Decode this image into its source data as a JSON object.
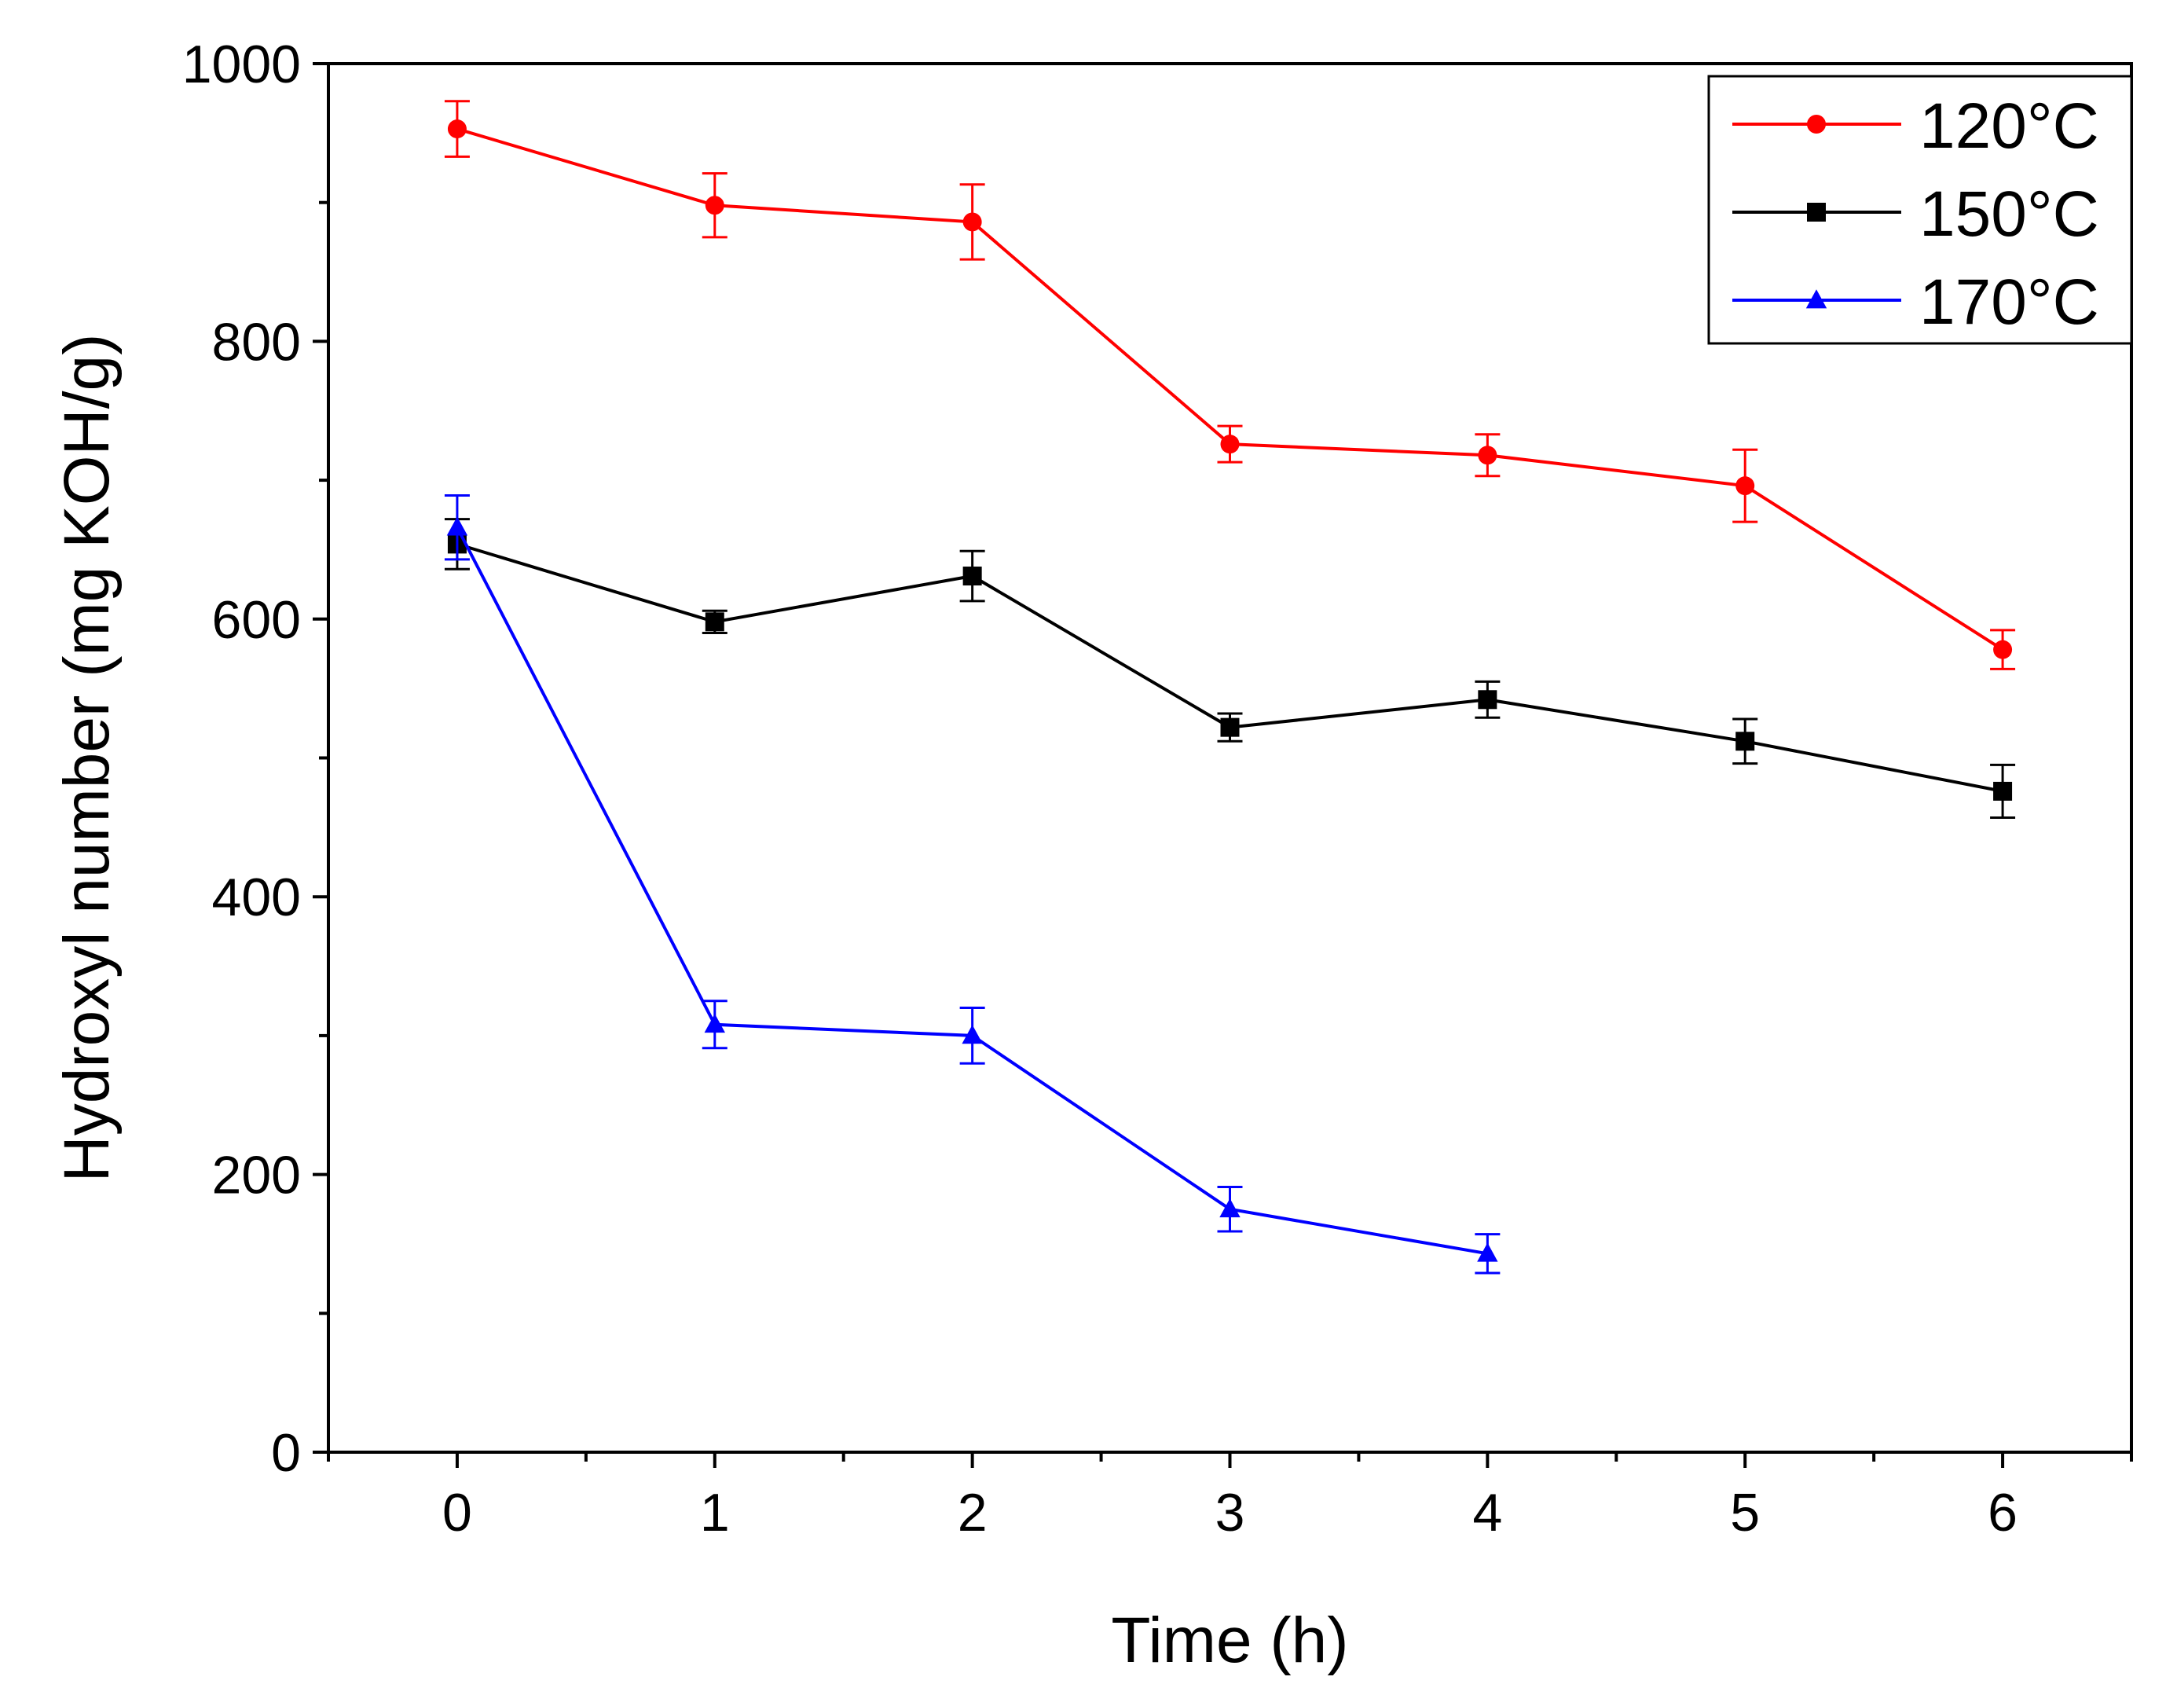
{
  "chart_data": {
    "type": "line",
    "title": "",
    "xlabel": "Time (h)",
    "ylabel": "Hydroxyl number (mg KOH/g)",
    "xlim": [
      -0.5,
      6.5
    ],
    "ylim": [
      0,
      1000
    ],
    "x_ticks": [
      0,
      1,
      2,
      3,
      4,
      5,
      6
    ],
    "y_ticks": [
      0,
      200,
      400,
      600,
      800,
      1000
    ],
    "grid": false,
    "legend_position": "top-right",
    "series": [
      {
        "name": "120°C",
        "color": "#ff0000",
        "marker": "circle",
        "x": [
          0,
          1,
          2,
          3,
          4,
          5,
          6
        ],
        "y": [
          953,
          898,
          886,
          726,
          718,
          696,
          578
        ],
        "error": [
          20,
          23,
          27,
          13,
          15,
          26,
          14
        ]
      },
      {
        "name": "150°C",
        "color": "#000000",
        "marker": "square",
        "x": [
          0,
          1,
          2,
          3,
          4,
          5,
          6
        ],
        "y": [
          654,
          598,
          631,
          522,
          542,
          512,
          476
        ],
        "error": [
          18,
          8,
          18,
          10,
          13,
          16,
          19
        ]
      },
      {
        "name": "170°C",
        "color": "#0000ff",
        "marker": "triangle",
        "x": [
          0,
          1,
          2,
          3,
          4
        ],
        "y": [
          666,
          308,
          300,
          175,
          143
        ],
        "error": [
          23,
          17,
          20,
          16,
          14
        ]
      }
    ]
  }
}
